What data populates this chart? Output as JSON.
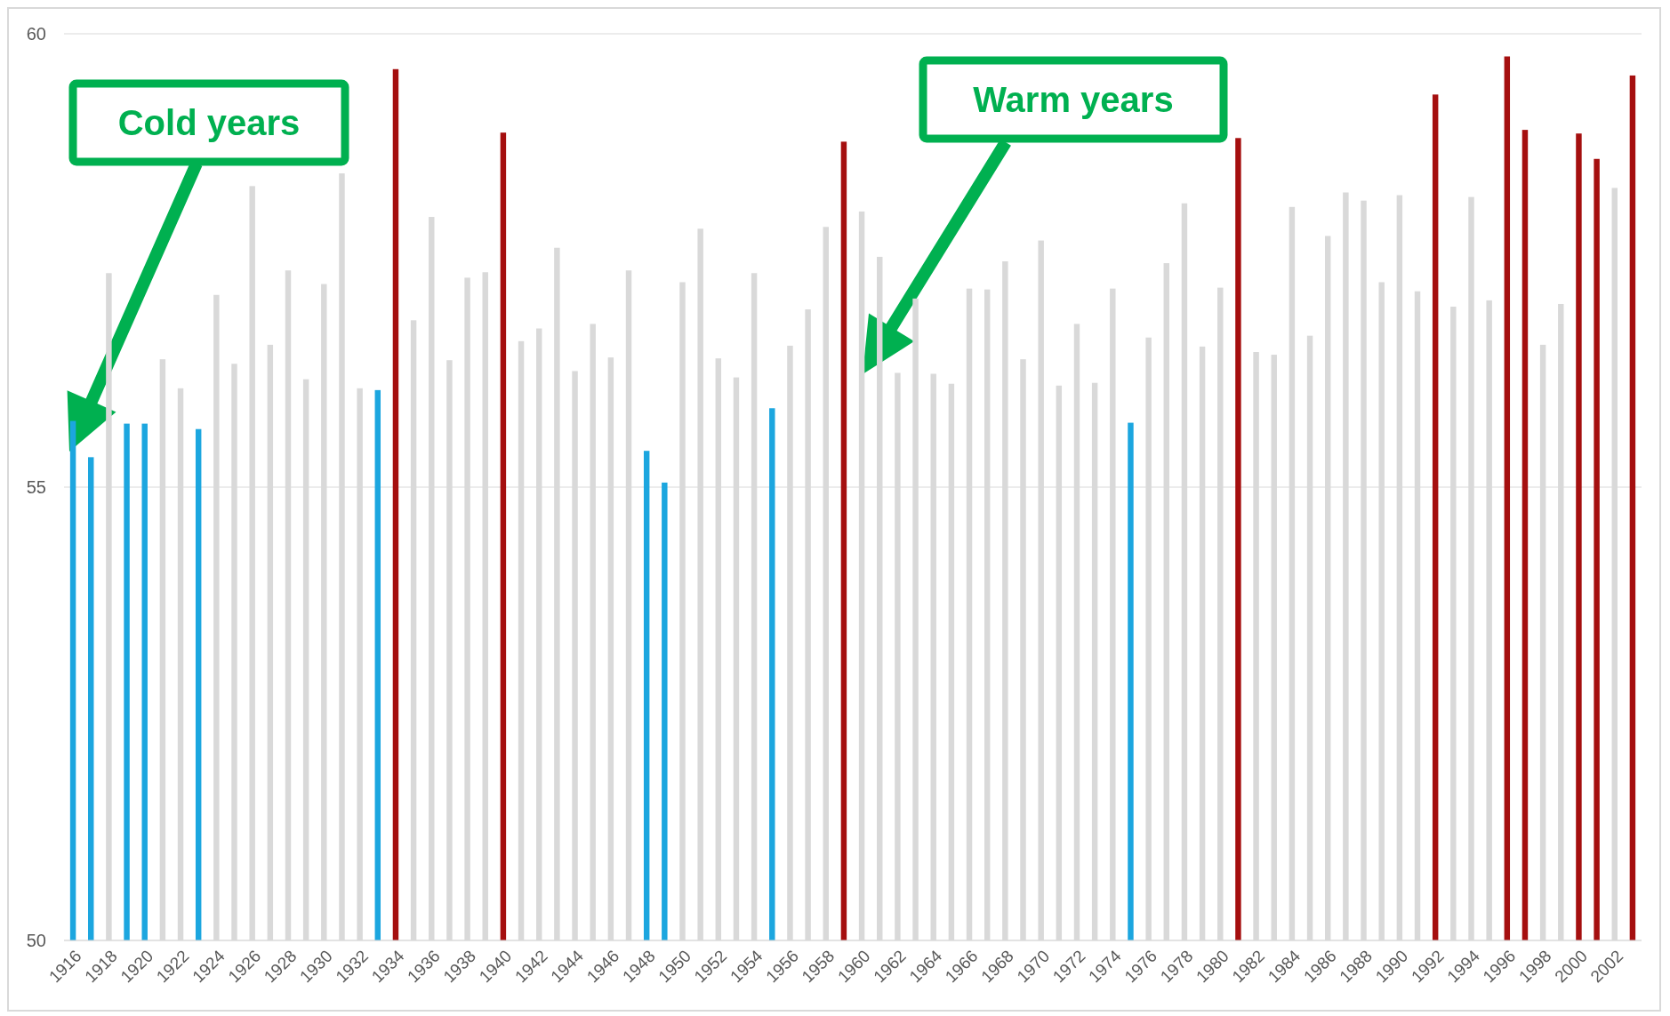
{
  "chart_data": {
    "type": "bar",
    "categories": [
      "1916",
      null,
      "1918",
      null,
      "1920",
      null,
      "1922",
      null,
      "1924",
      null,
      "1926",
      null,
      "1928",
      null,
      "1930",
      null,
      "1932",
      null,
      "1934",
      null,
      "1936",
      null,
      "1938",
      null,
      "1940",
      null,
      "1942",
      null,
      "1944",
      null,
      "1946",
      null,
      "1948",
      null,
      "1950",
      null,
      "1952",
      null,
      "1954",
      null,
      "1956",
      null,
      "1958",
      null,
      "1960",
      null,
      "1962",
      null,
      "1964",
      null,
      "1966",
      null,
      "1968",
      null,
      "1970",
      null,
      "1972",
      null,
      "1974",
      null,
      "1976",
      null,
      "1978",
      null,
      "1980",
      null,
      "1982",
      null,
      "1984",
      null,
      "1986",
      null,
      "1988",
      null,
      "1990",
      null,
      "1992",
      null,
      "1994",
      null,
      "1996",
      null,
      "1998",
      null,
      "2000",
      null,
      "2002",
      null
    ],
    "values": [
      55.73,
      55.33,
      57.36,
      55.7,
      55.7,
      56.41,
      56.09,
      55.64,
      57.12,
      56.36,
      58.32,
      56.57,
      57.39,
      56.19,
      57.24,
      58.46,
      56.09,
      56.07,
      59.61,
      56.84,
      57.98,
      56.4,
      57.31,
      57.37,
      58.91,
      56.61,
      56.75,
      57.64,
      56.28,
      56.8,
      56.43,
      57.39,
      55.4,
      55.05,
      57.26,
      57.85,
      56.42,
      56.21,
      57.36,
      55.87,
      56.56,
      56.96,
      57.87,
      58.81,
      58.04,
      57.54,
      56.26,
      57.08,
      56.25,
      56.14,
      57.19,
      57.18,
      57.49,
      56.41,
      57.72,
      56.12,
      56.8,
      56.15,
      57.19,
      55.71,
      56.65,
      57.47,
      58.13,
      56.55,
      57.2,
      58.85,
      56.49,
      56.46,
      58.09,
      56.67,
      57.77,
      58.25,
      58.16,
      57.26,
      58.22,
      57.16,
      59.33,
      56.99,
      58.2,
      57.06,
      59.75,
      58.94,
      56.57,
      57.02,
      58.9,
      58.62,
      58.3,
      59.54
    ],
    "colors": [
      "#1ca6df",
      "#1ca6df",
      "#d9d9d9",
      "#1ca6df",
      "#1ca6df",
      "#d9d9d9",
      "#d9d9d9",
      "#1ca6df",
      "#d9d9d9",
      "#d9d9d9",
      "#d9d9d9",
      "#d9d9d9",
      "#d9d9d9",
      "#d9d9d9",
      "#d9d9d9",
      "#d9d9d9",
      "#d9d9d9",
      "#1ca6df",
      "#a50f0f",
      "#d9d9d9",
      "#d9d9d9",
      "#d9d9d9",
      "#d9d9d9",
      "#d9d9d9",
      "#a50f0f",
      "#d9d9d9",
      "#d9d9d9",
      "#d9d9d9",
      "#d9d9d9",
      "#d9d9d9",
      "#d9d9d9",
      "#d9d9d9",
      "#1ca6df",
      "#1ca6df",
      "#d9d9d9",
      "#d9d9d9",
      "#d9d9d9",
      "#d9d9d9",
      "#d9d9d9",
      "#1ca6df",
      "#d9d9d9",
      "#d9d9d9",
      "#d9d9d9",
      "#a50f0f",
      "#d9d9d9",
      "#d9d9d9",
      "#d9d9d9",
      "#d9d9d9",
      "#d9d9d9",
      "#d9d9d9",
      "#d9d9d9",
      "#d9d9d9",
      "#d9d9d9",
      "#d9d9d9",
      "#d9d9d9",
      "#d9d9d9",
      "#d9d9d9",
      "#d9d9d9",
      "#d9d9d9",
      "#1ca6df",
      "#d9d9d9",
      "#d9d9d9",
      "#d9d9d9",
      "#d9d9d9",
      "#d9d9d9",
      "#a50f0f",
      "#d9d9d9",
      "#d9d9d9",
      "#d9d9d9",
      "#d9d9d9",
      "#d9d9d9",
      "#d9d9d9",
      "#d9d9d9",
      "#d9d9d9",
      "#d9d9d9",
      "#d9d9d9",
      "#a50f0f",
      "#d9d9d9",
      "#d9d9d9",
      "#d9d9d9",
      "#a50f0f",
      "#a50f0f",
      "#d9d9d9",
      "#d9d9d9",
      "#a50f0f",
      "#a50f0f",
      "#d9d9d9",
      "#a50f0f"
    ],
    "ylim": [
      50,
      60
    ],
    "yticks": [
      50,
      55,
      60
    ],
    "grid": "y",
    "annotations": [
      "Cold years",
      "Warm years"
    ]
  }
}
